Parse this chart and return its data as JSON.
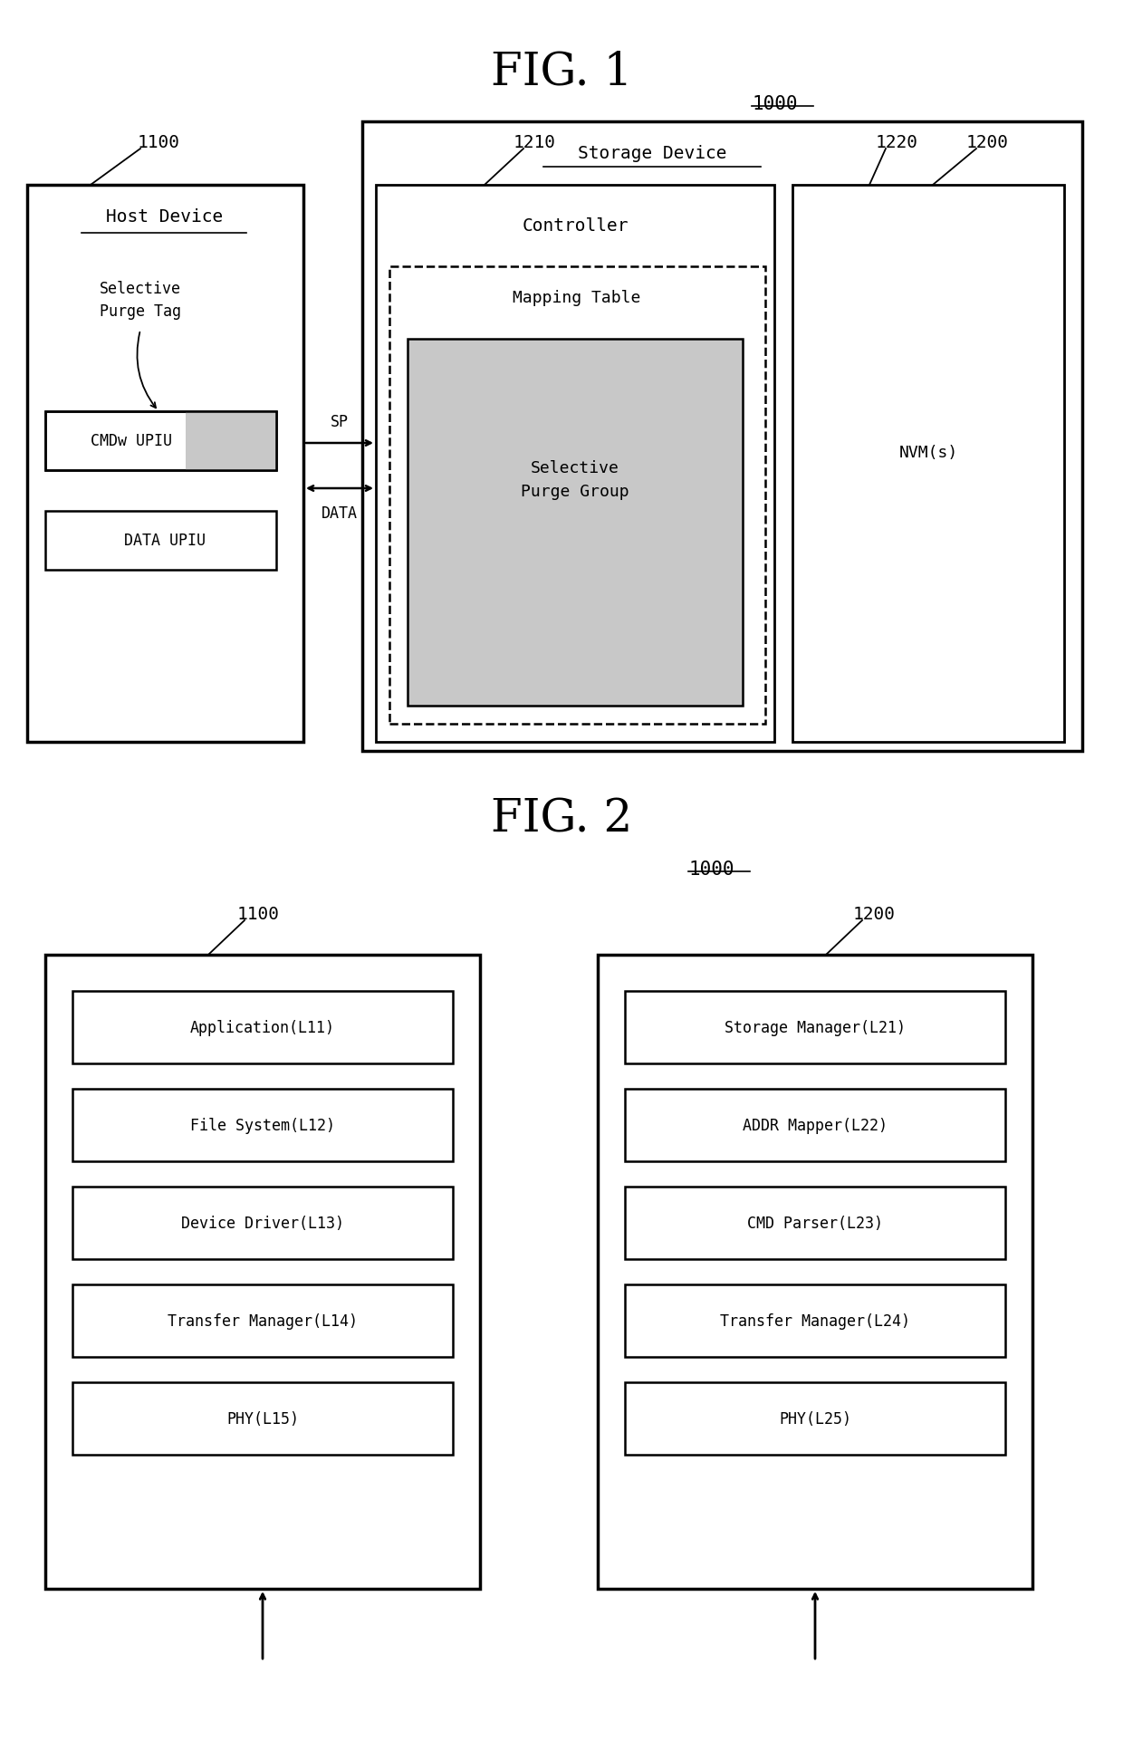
{
  "bg_color": "#ffffff",
  "fig1_title": "FIG. 1",
  "fig2_title": "FIG. 2",
  "fig1": {
    "lbl_1000": "1000",
    "lbl_1100": "1100",
    "lbl_1200": "1200",
    "lbl_1210": "1210",
    "lbl_1220": "1220",
    "host_device": "Host Device",
    "storage_device": "Storage Device",
    "selective_purge_tag": "Selective\nPurge Tag",
    "controller": "Controller",
    "mapping_table": "Mapping Table",
    "selective_purge_group": "Selective\nPurge Group",
    "nvm": "NVM(s)",
    "cmdw_upiu": "CMDw UPIU",
    "data_upiu": "DATA UPIU",
    "sp": "SP",
    "data": "DATA"
  },
  "fig2": {
    "lbl_1000": "1000",
    "lbl_1100": "1100",
    "lbl_1200": "1200",
    "host_layers": [
      "Application(L11)",
      "File System(L12)",
      "Device Driver(L13)",
      "Transfer Manager(L14)",
      "PHY(L15)"
    ],
    "storage_layers": [
      "Storage Manager(L21)",
      "ADDR Mapper(L22)",
      "CMD Parser(L23)",
      "Transfer Manager(L24)",
      "PHY(L25)"
    ]
  }
}
